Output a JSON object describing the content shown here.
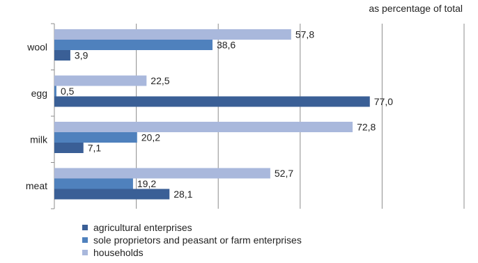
{
  "chart_data": {
    "type": "bar",
    "orientation": "horizontal",
    "unit_label": "as percentage of total",
    "categories": [
      "wool",
      "egg",
      "milk",
      "meat"
    ],
    "series": [
      {
        "name": "households",
        "color": "#a9b8dc",
        "values": [
          57.8,
          22.5,
          72.8,
          52.7
        ],
        "labels": [
          "57,8",
          "22,5",
          "72,8",
          "52,7"
        ]
      },
      {
        "name": "sole proprietors and peasant or farm enterprises",
        "color": "#4f81bd",
        "values": [
          38.6,
          0.5,
          20.2,
          19.2
        ],
        "labels": [
          "38,6",
          "0,5",
          "20,2",
          "19,2"
        ]
      },
      {
        "name": "agricultural enterprises",
        "color": "#3a5f96",
        "values": [
          3.9,
          77.0,
          7.1,
          28.1
        ],
        "labels": [
          "3,9",
          "77,0",
          "7,1",
          "28,1"
        ]
      }
    ],
    "legend_order": [
      "agricultural enterprises",
      "sole proprietors and peasant or farm enterprises",
      "households"
    ],
    "xlim": [
      0,
      100
    ],
    "x_gridlines": [
      0,
      20,
      40,
      60,
      80,
      100
    ],
    "grid": true,
    "legend_position": "bottom"
  }
}
